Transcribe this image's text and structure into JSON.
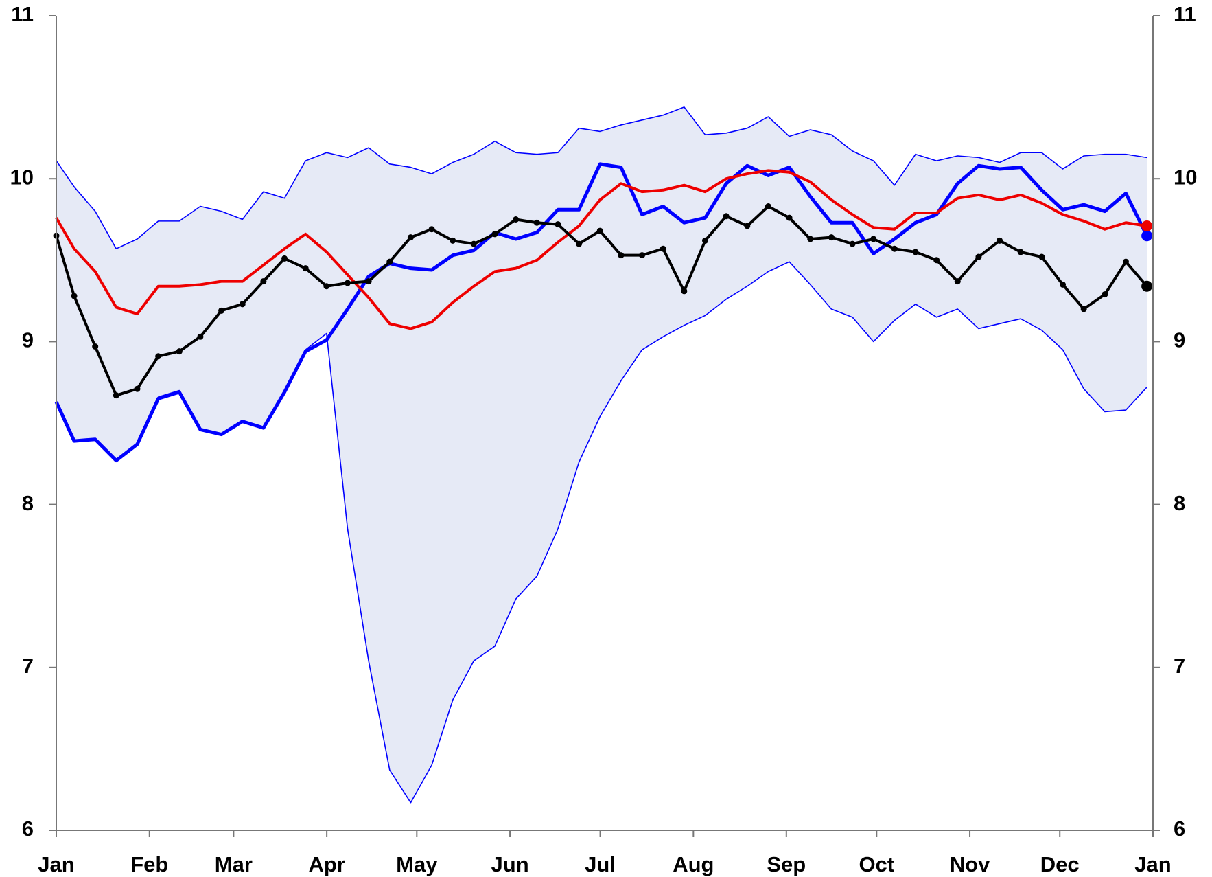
{
  "chart_data": {
    "type": "line",
    "x": [
      0,
      0.85,
      1.85,
      2.85,
      3.85,
      4.85,
      5.85,
      6.85,
      7.85,
      8.85,
      9.85,
      10.85,
      11.85,
      12.85,
      13.85,
      14.85,
      15.85,
      16.85,
      17.85,
      18.85,
      19.85,
      20.85,
      21.85,
      22.85,
      23.85,
      24.85,
      25.85,
      26.85,
      27.85,
      28.85,
      29.85,
      30.85,
      31.85,
      32.85,
      33.85,
      34.85,
      35.85,
      36.85,
      37.85,
      38.85,
      39.85,
      40.85,
      41.85,
      42.85,
      43.85,
      44.85,
      45.85,
      46.85,
      47.85,
      48.85,
      49.85,
      50.85,
      51.85
    ],
    "xlim": [
      0,
      52.14
    ],
    "xticks": [
      {
        "value": 0,
        "label": "Jan"
      },
      {
        "value": 4.43,
        "label": "Feb"
      },
      {
        "value": 8.43,
        "label": "Mar"
      },
      {
        "value": 12.86,
        "label": "Apr"
      },
      {
        "value": 17.14,
        "label": "May"
      },
      {
        "value": 21.57,
        "label": "Jun"
      },
      {
        "value": 25.86,
        "label": "Jul"
      },
      {
        "value": 30.29,
        "label": "Aug"
      },
      {
        "value": 34.71,
        "label": "Sep"
      },
      {
        "value": 39,
        "label": "Oct"
      },
      {
        "value": 43.43,
        "label": "Nov"
      },
      {
        "value": 47.71,
        "label": "Dec"
      },
      {
        "value": 52.14,
        "label": "Jan"
      }
    ],
    "ylim": [
      6,
      11
    ],
    "yticks": [
      6,
      7,
      8,
      9,
      10,
      11
    ],
    "y2lim": [
      6,
      11
    ],
    "y2ticks": [
      6,
      7,
      8,
      9,
      10,
      11
    ],
    "band": {
      "color": "#0000ff",
      "fill": "#e6eaf6",
      "upper": [
        10.11,
        9.95,
        9.8,
        9.57,
        9.63,
        9.74,
        9.74,
        9.83,
        9.8,
        9.75,
        9.92,
        9.88,
        10.11,
        10.16,
        10.13,
        10.19,
        10.09,
        10.07,
        10.03,
        10.1,
        10.15,
        10.23,
        10.16,
        10.15,
        10.16,
        10.31,
        10.29,
        10.33,
        10.36,
        10.39,
        10.44,
        10.27,
        10.28,
        10.31,
        10.38,
        10.26,
        10.3,
        10.27,
        10.17,
        10.11,
        9.96,
        10.15,
        10.11,
        10.14,
        10.13,
        10.1,
        10.16,
        10.16,
        10.06,
        10.14,
        10.15,
        10.15,
        10.13
      ],
      "lower": [
        8.63,
        8.39,
        8.4,
        8.27,
        8.37,
        8.66,
        8.7,
        8.46,
        8.43,
        8.51,
        8.47,
        8.69,
        8.95,
        9.05,
        7.85,
        7.04,
        6.37,
        6.17,
        6.4,
        6.8,
        7.04,
        7.13,
        7.42,
        7.56,
        7.85,
        8.26,
        8.54,
        8.76,
        8.95,
        9.03,
        9.1,
        9.16,
        9.26,
        9.34,
        9.43,
        9.49,
        9.35,
        9.2,
        9.15,
        9.0,
        9.13,
        9.23,
        9.15,
        9.2,
        9.08,
        9.11,
        9.14,
        9.07,
        8.95,
        8.71,
        8.57,
        8.58,
        8.72
      ]
    },
    "series": [
      {
        "color": "#0000ff",
        "width": 5,
        "dots": false,
        "values": [
          8.63,
          8.39,
          8.4,
          8.27,
          8.37,
          8.65,
          8.69,
          8.46,
          8.43,
          8.51,
          8.47,
          8.69,
          8.94,
          9.01,
          9.2,
          9.4,
          9.48,
          9.45,
          9.44,
          9.53,
          9.56,
          9.67,
          9.63,
          9.67,
          9.81,
          9.81,
          10.09,
          10.07,
          9.78,
          9.83,
          9.73,
          9.76,
          9.97,
          10.08,
          10.02,
          10.07,
          9.89,
          9.73,
          9.73,
          9.54,
          9.63,
          9.73,
          9.78,
          9.97,
          10.08,
          10.06,
          10.07,
          9.93,
          9.81,
          9.84,
          9.8,
          9.91,
          9.65
        ]
      },
      {
        "color": "#ee0000",
        "width": 4,
        "dots": false,
        "values": [
          9.76,
          9.57,
          9.43,
          9.21,
          9.17,
          9.34,
          9.34,
          9.35,
          9.37,
          9.37,
          9.47,
          9.57,
          9.66,
          9.55,
          9.41,
          9.27,
          9.11,
          9.08,
          9.12,
          9.24,
          9.34,
          9.43,
          9.45,
          9.5,
          9.61,
          9.71,
          9.87,
          9.97,
          9.92,
          9.93,
          9.96,
          9.92,
          10.0,
          10.03,
          10.05,
          10.04,
          9.98,
          9.87,
          9.78,
          9.7,
          9.69,
          9.79,
          9.79,
          9.88,
          9.9,
          9.87,
          9.9,
          9.85,
          9.78,
          9.74,
          9.69,
          9.73,
          9.71
        ]
      },
      {
        "color": "#000000",
        "width": 4,
        "dots": true,
        "values": [
          9.65,
          9.28,
          8.97,
          8.67,
          8.71,
          8.91,
          8.94,
          9.03,
          9.19,
          9.23,
          9.37,
          9.51,
          9.45,
          9.34,
          9.36,
          9.37,
          9.49,
          9.64,
          9.69,
          9.62,
          9.6,
          9.66,
          9.75,
          9.73,
          9.72,
          9.6,
          9.68,
          9.53,
          9.53,
          9.57,
          9.31,
          9.62,
          9.77,
          9.71,
          9.83,
          9.76,
          9.63,
          9.64,
          9.6,
          9.63,
          9.57,
          9.55,
          9.5,
          9.37,
          9.52,
          9.62,
          9.55,
          9.52,
          9.35,
          9.2,
          9.29,
          9.49,
          9.34
        ]
      }
    ]
  }
}
